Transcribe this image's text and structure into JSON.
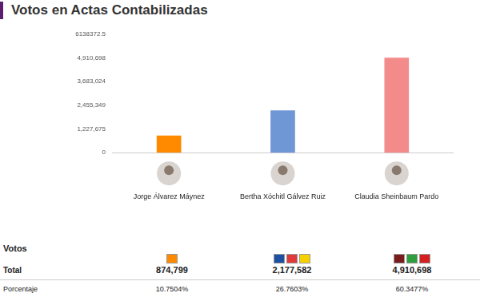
{
  "chart_data": {
    "type": "bar",
    "title": "Votos en Actas Contabilizadas",
    "categories": [
      "Jorge Álvarez Máynez",
      "Bertha Xóchitl Gálvez Ruiz",
      "Claudia Sheinbaum Pardo"
    ],
    "values": [
      874799,
      2177582,
      4910698
    ],
    "colors": [
      "#ff8a00",
      "#6f97d6",
      "#f48b8b"
    ],
    "ylim": [
      0,
      6138372.5
    ],
    "yticks": [
      0,
      {
        "value": 1227675,
        "label": "1,227,675"
      },
      {
        "value": 2455349,
        "label": "2,455,349"
      },
      {
        "value": 3683024,
        "label": "3,683,024"
      },
      {
        "value": 4910698,
        "label": "4,910,698"
      },
      6138372.5
    ],
    "grid": false
  },
  "table": {
    "header": "Votos",
    "rows": [
      {
        "label": "Total",
        "cells": [
          "874,799",
          "2,177,582",
          "4,910,698"
        ]
      },
      {
        "label": "Porcentaje",
        "cells": [
          "10.7504%",
          "26.7603%",
          "60.3477%"
        ]
      }
    ]
  }
}
